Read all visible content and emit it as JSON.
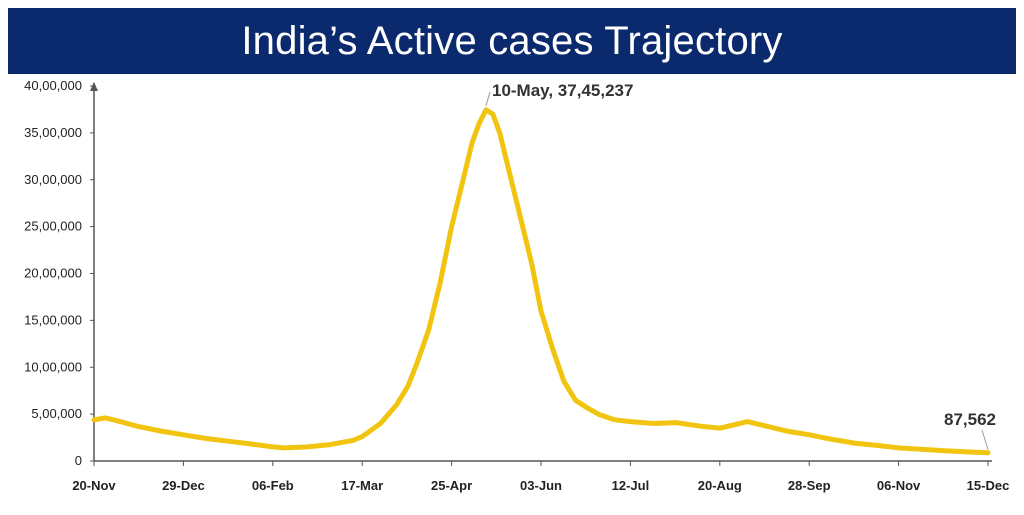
{
  "title": "India’s Active cases Trajectory",
  "colors": {
    "title_background": "#0b2a6e",
    "line": "#f1c40f",
    "axis": "#555555"
  },
  "chart_data": {
    "type": "line",
    "title": "India’s Active cases Trajectory",
    "xlabel": "",
    "ylabel": "",
    "x_ticks": [
      "20-Nov",
      "29-Dec",
      "06-Feb",
      "17-Mar",
      "25-Apr",
      "03-Jun",
      "12-Jul",
      "20-Aug",
      "28-Sep",
      "06-Nov",
      "15-Dec"
    ],
    "y_ticks": [
      "0",
      "5,00,000",
      "10,00,000",
      "15,00,000",
      "20,00,000",
      "25,00,000",
      "30,00,000",
      "35,00,000",
      "40,00,000"
    ],
    "ylim": [
      0,
      4000000
    ],
    "xlim": [
      "2020-11-20",
      "2021-12-15"
    ],
    "grid": false,
    "series": [
      {
        "x": [
          "2020-11-20",
          "2020-11-25",
          "2020-11-30",
          "2020-12-09",
          "2020-12-19",
          "2020-12-29",
          "2021-01-08",
          "2021-01-18",
          "2021-01-28",
          "2021-02-06",
          "2021-02-11",
          "2021-02-21",
          "2021-03-03",
          "2021-03-13",
          "2021-03-17",
          "2021-03-25",
          "2021-04-01",
          "2021-04-06",
          "2021-04-10",
          "2021-04-15",
          "2021-04-20",
          "2021-04-25",
          "2021-04-30",
          "2021-05-04",
          "2021-05-07",
          "2021-05-10",
          "2021-05-13",
          "2021-05-16",
          "2021-05-20",
          "2021-05-25",
          "2021-05-30",
          "2021-06-03",
          "2021-06-08",
          "2021-06-13",
          "2021-06-18",
          "2021-06-23",
          "2021-06-28",
          "2021-07-05",
          "2021-07-12",
          "2021-07-22",
          "2021-08-01",
          "2021-08-12",
          "2021-08-20",
          "2021-08-27",
          "2021-09-01",
          "2021-09-08",
          "2021-09-18",
          "2021-09-28",
          "2021-10-08",
          "2021-10-18",
          "2021-10-28",
          "2021-11-06",
          "2021-11-16",
          "2021-11-26",
          "2021-12-06",
          "2021-12-15"
        ],
        "values": [
          440000,
          460000,
          430000,
          370000,
          320000,
          280000,
          240000,
          210000,
          180000,
          150000,
          140000,
          150000,
          175000,
          220000,
          260000,
          400000,
          600000,
          800000,
          1050000,
          1400000,
          1900000,
          2500000,
          3000000,
          3400000,
          3600000,
          3745237,
          3700000,
          3500000,
          3100000,
          2600000,
          2100000,
          1600000,
          1200000,
          850000,
          650000,
          570000,
          500000,
          440000,
          420000,
          400000,
          410000,
          370000,
          350000,
          390000,
          420000,
          380000,
          320000,
          280000,
          230000,
          190000,
          165000,
          140000,
          125000,
          110000,
          97000,
          87562
        ]
      }
    ],
    "annotations": [
      {
        "text": "10-May,  37,45,237",
        "x": "2021-05-10",
        "y": 3745237
      },
      {
        "text": "87,562",
        "x": "2021-12-15",
        "y": 87562
      }
    ]
  }
}
